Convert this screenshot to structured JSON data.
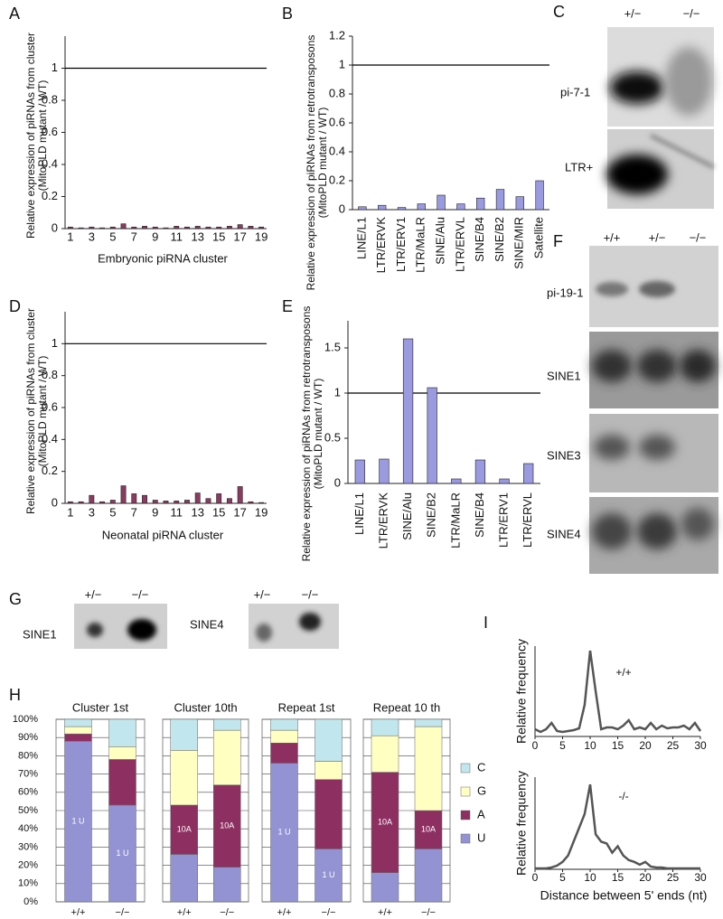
{
  "chart_data": [
    {
      "type": "bar",
      "panel": "A",
      "ylabel": [
        "Relative expression of piRNAs from cluster",
        "(MitoPLD mutant / WT)"
      ],
      "xlabel": "Embryonic piRNA cluster",
      "categories": [
        "1",
        null,
        "3",
        null,
        "5",
        null,
        "7",
        null,
        "9",
        null,
        "11",
        null,
        "13",
        null,
        "15",
        null,
        "17",
        null,
        "19"
      ],
      "values": [
        0.01,
        0.005,
        0.01,
        0.005,
        0.01,
        0.03,
        0.01,
        0.015,
        0.01,
        0.005,
        0.015,
        0.01,
        0.015,
        0.01,
        0.01,
        0.015,
        0.025,
        0.015,
        0.01
      ],
      "color": "#8b3a62",
      "ylim": [
        0,
        1.2
      ],
      "yticks": [
        0,
        0.2,
        0.4,
        0.6,
        0.8,
        1
      ],
      "reference_line": 1
    },
    {
      "type": "bar",
      "panel": "B",
      "ylabel": [
        "Relative expression of piRNAs from retrotransposons",
        "(MitoPLD mutant / WT)"
      ],
      "categories": [
        "LINE/L1",
        "LTR/ERVK",
        "LTR/ERV1",
        "LTR/MaLR",
        "SINE/Alu",
        "LTR/ERVL",
        "SINE/B4",
        "SINE/B2",
        "SINE/MIR",
        "Satellite"
      ],
      "values": [
        0.02,
        0.03,
        0.015,
        0.04,
        0.1,
        0.04,
        0.08,
        0.14,
        0.09,
        0.2
      ],
      "color": "#9a9ae0",
      "ylim": [
        0,
        1.2
      ],
      "yticks": [
        0,
        0.2,
        0.4,
        0.6,
        0.8,
        1,
        1.2
      ],
      "reference_line": 1
    },
    {
      "type": "bar",
      "panel": "D",
      "ylabel": [
        "Relative expression of piRNAs from cluster",
        "(MitoPLD mutant / WT)"
      ],
      "xlabel": "Neonatal piRNA cluster",
      "categories": [
        "1",
        null,
        "3",
        null,
        "5",
        null,
        "7",
        null,
        "9",
        null,
        "11",
        null,
        "13",
        null,
        "15",
        null,
        "17",
        null,
        "19"
      ],
      "values": [
        0.01,
        0.01,
        0.05,
        0.01,
        0.02,
        0.11,
        0.06,
        0.05,
        0.02,
        0.015,
        0.015,
        0.02,
        0.065,
        0.03,
        0.06,
        0.03,
        0.105,
        0.01,
        0.005
      ],
      "color": "#8b3a62",
      "ylim": [
        0,
        1.2
      ],
      "yticks": [
        0,
        0.2,
        0.4,
        0.6,
        0.8,
        1
      ],
      "reference_line": 1
    },
    {
      "type": "bar",
      "panel": "E",
      "ylabel": [
        "Relative expression of piRNAs from retrotransposons",
        "(MitoPLD mutant / WT)"
      ],
      "categories": [
        "LINE/L1",
        "LTR/ERVK",
        "SINE/Alu",
        "SINE/B2",
        "LTR/MaLR",
        "SINE/B4",
        "LTR/ERV1",
        "LTR/ERVL"
      ],
      "values": [
        0.26,
        0.27,
        1.6,
        1.06,
        0.05,
        0.26,
        0.05,
        0.22
      ],
      "color": "#9a9ae0",
      "ylim": [
        0,
        1.8
      ],
      "yticks": [
        0,
        0.5,
        1,
        1.5
      ],
      "reference_line": 1
    },
    {
      "type": "stacked_bar",
      "panel": "H",
      "groups": [
        "Cluster 1st",
        "Cluster 10th",
        "Repeat 1st",
        "Repeat 10 th"
      ],
      "categories": [
        "+/+",
        "−/−",
        "+/+",
        "−/−",
        "+/+",
        "−/−",
        "+/+",
        "−/−"
      ],
      "series": [
        {
          "name": "U",
          "color": "#9393d3",
          "values": [
            88,
            53,
            26,
            19,
            76,
            29,
            16,
            29
          ],
          "annotations": [
            "1 U",
            "1 U",
            null,
            null,
            "1 U",
            "1 U",
            null,
            null
          ]
        },
        {
          "name": "A",
          "color": "#8e2f62",
          "values": [
            4,
            25,
            27,
            45,
            11,
            38,
            55,
            21
          ],
          "annotations": [
            null,
            null,
            "10A",
            "10A",
            null,
            null,
            "10A",
            "10A"
          ]
        },
        {
          "name": "G",
          "color": "#ffffc2",
          "values": [
            4,
            7,
            30,
            30,
            7,
            10,
            20,
            46
          ]
        },
        {
          "name": "C",
          "color": "#c2e6ee",
          "values": [
            4,
            15,
            17,
            6,
            6,
            23,
            9,
            4
          ]
        }
      ],
      "ylim": [
        0,
        100
      ],
      "yticks": [
        {
          "value": 0,
          "label": "0%"
        },
        {
          "value": 10,
          "label": "10%"
        },
        {
          "value": 20,
          "label": "20%"
        },
        {
          "value": 30,
          "label": "30%"
        },
        {
          "value": 40,
          "label": "40%"
        },
        {
          "value": 50,
          "label": "50%"
        },
        {
          "value": 60,
          "label": "60%"
        },
        {
          "value": 70,
          "label": "70%"
        },
        {
          "value": 80,
          "label": "80%"
        },
        {
          "value": 90,
          "label": "90%"
        },
        {
          "value": 100,
          "label": "100%"
        }
      ],
      "grid": true
    },
    {
      "type": "line",
      "panel": "I",
      "title": "+/+",
      "ylabel": "Relative frequency",
      "color": "#555555",
      "x": [
        0,
        1,
        2,
        3,
        4,
        5,
        6,
        7,
        8,
        9,
        10,
        11,
        12,
        13,
        14,
        15,
        16,
        17,
        18,
        19,
        20,
        21,
        22,
        23,
        24,
        25,
        26,
        27,
        28,
        29,
        30
      ],
      "values": [
        0.08,
        0.05,
        0.08,
        0.15,
        0.06,
        0.05,
        0.06,
        0.07,
        0.09,
        0.35,
        0.95,
        0.5,
        0.08,
        0.1,
        0.1,
        0.08,
        0.12,
        0.18,
        0.08,
        0.1,
        0.08,
        0.15,
        0.08,
        0.12,
        0.09,
        0.1,
        0.1,
        0.12,
        0.08,
        0.15,
        0.06
      ],
      "xlim": [
        0,
        30
      ],
      "xticks": [
        0,
        5,
        10,
        15,
        20,
        25,
        30
      ],
      "ylim": [
        0,
        1
      ]
    },
    {
      "type": "line",
      "title": "-/-",
      "ylabel": "Relative frequency",
      "xlabel": "Distance between 5' ends (nt)",
      "color": "#555555",
      "x": [
        0,
        1,
        2,
        3,
        4,
        5,
        6,
        7,
        8,
        9,
        10,
        11,
        12,
        13,
        14,
        15,
        16,
        17,
        18,
        19,
        20,
        21,
        22,
        23,
        24,
        25,
        26,
        27,
        28,
        29,
        30
      ],
      "values": [
        0.01,
        0.01,
        0.01,
        0.02,
        0.04,
        0.08,
        0.15,
        0.3,
        0.45,
        0.6,
        0.92,
        0.38,
        0.3,
        0.28,
        0.18,
        0.25,
        0.15,
        0.1,
        0.08,
        0.05,
        0.08,
        0.03,
        0.02,
        0.02,
        0.01,
        0.01,
        0.01,
        0.01,
        0.01,
        0.01,
        0.01
      ],
      "xlim": [
        0,
        30
      ],
      "xticks": [
        0,
        5,
        10,
        15,
        20,
        25,
        30
      ],
      "ylim": [
        0,
        1
      ]
    }
  ],
  "blots": {
    "C": {
      "panel": "C",
      "lanes": [
        "+/−",
        "−/−"
      ],
      "rows": [
        "pi-7-1",
        "LTR+"
      ]
    },
    "F": {
      "panel": "F",
      "lanes": [
        "+/+",
        "+/−",
        "−/−"
      ],
      "rows": [
        "pi-19-1",
        "SINE1",
        "SINE3",
        "SINE4"
      ]
    },
    "G": {
      "panel": "G",
      "left": {
        "lanes": [
          "+/−",
          "−/−"
        ],
        "row": "SINE1"
      },
      "right": {
        "lanes": [
          "+/−",
          "−/−"
        ],
        "row": "SINE4"
      }
    }
  }
}
